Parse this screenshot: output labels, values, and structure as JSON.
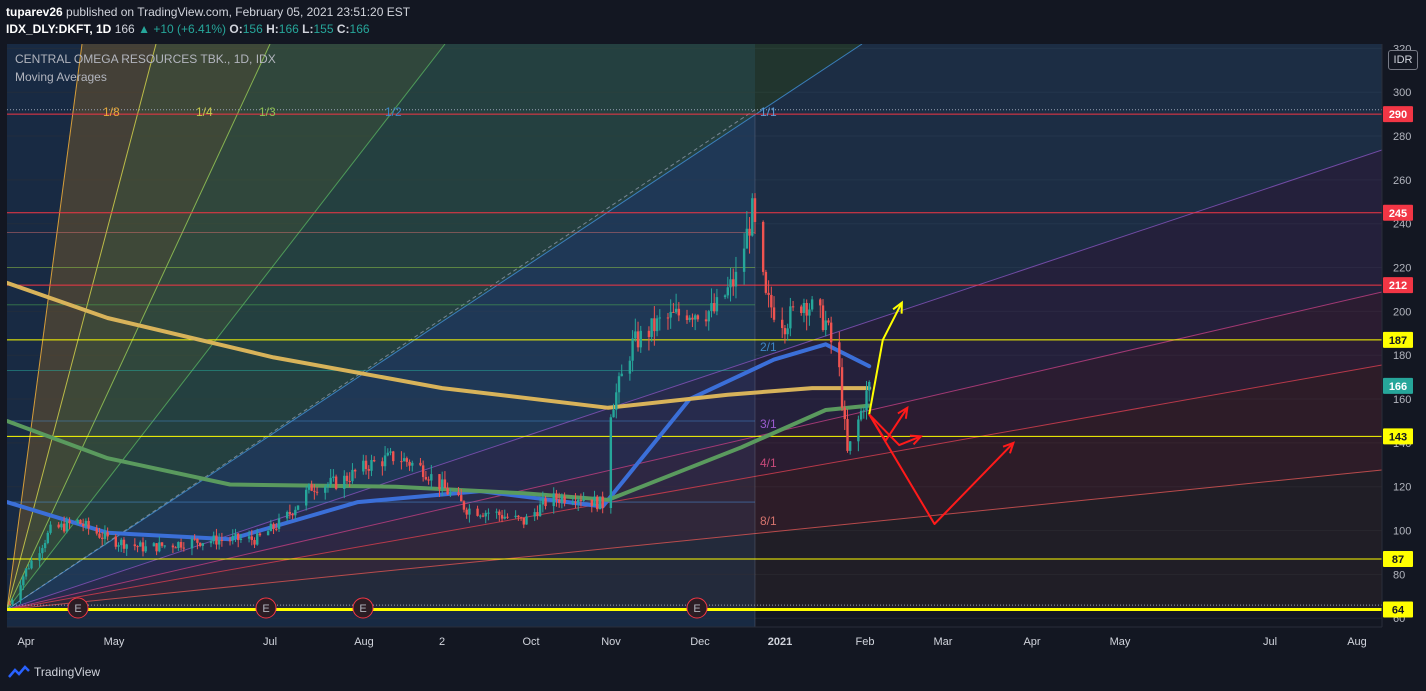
{
  "header": {
    "author": "tuparev26",
    "published_text": "published on TradingView.com, February 05, 2021 23:51:20 EST",
    "symbol": "IDX_DLY:DKFT, 1D",
    "last": "166",
    "change": "+10 (+6.41%)",
    "o_label": "O:",
    "o": "156",
    "h_label": "H:",
    "h": "166",
    "l_label": "L:",
    "l": "155",
    "c_label": "C:",
    "c": "166"
  },
  "legend": {
    "series_title": "CENTRAL OMEGA RESOURCES TBK., 1D, IDX",
    "indicator_title": "Moving Averages"
  },
  "currency": "IDR",
  "footer": {
    "brand": "TradingView"
  },
  "colors": {
    "background": "#131722",
    "up": "#26a69a",
    "down": "#ef5350",
    "ma_fast": "#3b6fd8",
    "ma_mid": "#5a9a5e",
    "ma_slow": "#d8b35a",
    "level_yellow": "#ffff00",
    "level_red": "#f23645",
    "arrow_yellow": "#ffff00",
    "arrow_red": "#ff1a1a"
  },
  "chart_data": {
    "type": "candlestick",
    "ylim": [
      56,
      322
    ],
    "y_ticks": [
      60,
      80,
      100,
      120,
      140,
      160,
      180,
      200,
      220,
      240,
      260,
      280,
      300,
      320
    ],
    "x_ticks": [
      "Apr",
      "May",
      "Jul",
      "Aug",
      "2",
      "Oct",
      "Nov",
      "Dec",
      "2021",
      "Feb",
      "Mar",
      "Apr",
      "May",
      "Jul",
      "Aug"
    ],
    "price_levels": [
      {
        "value": 290,
        "label": "290",
        "color": "#f23645"
      },
      {
        "value": 245,
        "label": "245",
        "color": "#f23645"
      },
      {
        "value": 212,
        "label": "212",
        "color": "#f23645"
      },
      {
        "value": 187,
        "label": "187",
        "color": "#ffff00"
      },
      {
        "value": 166,
        "label": "166",
        "color": "#26a69a"
      },
      {
        "value": 143,
        "label": "143",
        "color": "#ffff00"
      },
      {
        "value": 87,
        "label": "87",
        "color": "#ffff00"
      },
      {
        "value": 64,
        "label": "64",
        "color": "#ffff00"
      }
    ],
    "gann_fan_labels": [
      "1/8",
      "1/4",
      "1/3",
      "1/2",
      "1/1",
      "2/1",
      "3/1",
      "4/1",
      "8/1"
    ],
    "earnings_marker": "E",
    "earnings_count": 4,
    "price_path": [
      [
        "2020-03-25",
        64
      ],
      [
        "2020-04-01",
        82
      ],
      [
        "2020-04-10",
        100
      ],
      [
        "2020-04-20",
        104
      ],
      [
        "2020-05-01",
        96
      ],
      [
        "2020-05-15",
        92
      ],
      [
        "2020-06-01",
        95
      ],
      [
        "2020-06-15",
        96
      ],
      [
        "2020-06-25",
        96
      ],
      [
        "2020-07-05",
        105
      ],
      [
        "2020-07-15",
        120
      ],
      [
        "2020-07-25",
        122
      ],
      [
        "2020-08-05",
        130
      ],
      [
        "2020-08-15",
        134
      ],
      [
        "2020-08-25",
        128
      ],
      [
        "2020-09-01",
        120
      ],
      [
        "2020-09-10",
        110
      ],
      [
        "2020-09-20",
        108
      ],
      [
        "2020-10-01",
        104
      ],
      [
        "2020-10-10",
        114
      ],
      [
        "2020-10-20",
        116
      ],
      [
        "2020-10-30",
        112
      ],
      [
        "2020-11-02",
        155
      ],
      [
        "2020-11-10",
        185
      ],
      [
        "2020-11-20",
        195
      ],
      [
        "2020-11-30",
        200
      ],
      [
        "2020-12-10",
        200
      ],
      [
        "2020-12-18",
        215
      ],
      [
        "2020-12-24",
        245
      ],
      [
        "2020-12-29",
        205
      ],
      [
        "2021-01-05",
        195
      ],
      [
        "2021-01-12",
        205
      ],
      [
        "2021-01-20",
        195
      ],
      [
        "2021-01-25",
        172
      ],
      [
        "2021-01-28",
        135
      ],
      [
        "2021-02-01",
        150
      ],
      [
        "2021-02-05",
        166
      ]
    ],
    "moving_averages": [
      {
        "name": "MA fast",
        "color": "#3b6fd8",
        "points": [
          [
            "2020-03-25",
            113
          ],
          [
            "2020-05-01",
            99
          ],
          [
            "2020-06-15",
            96
          ],
          [
            "2020-08-01",
            113
          ],
          [
            "2020-09-15",
            118
          ],
          [
            "2020-10-30",
            111
          ],
          [
            "2020-12-01",
            160
          ],
          [
            "2021-01-01",
            178
          ],
          [
            "2021-01-20",
            185
          ],
          [
            "2021-02-05",
            175
          ]
        ]
      },
      {
        "name": "MA mid",
        "color": "#5a9a5e",
        "points": [
          [
            "2020-03-25",
            150
          ],
          [
            "2020-05-01",
            133
          ],
          [
            "2020-06-15",
            121
          ],
          [
            "2020-08-15",
            120
          ],
          [
            "2020-10-01",
            117
          ],
          [
            "2020-11-01",
            114
          ],
          [
            "2020-12-20",
            138
          ],
          [
            "2021-01-20",
            155
          ],
          [
            "2021-02-05",
            157
          ]
        ]
      },
      {
        "name": "MA slow",
        "color": "#d8b35a",
        "points": [
          [
            "2020-03-25",
            213
          ],
          [
            "2020-05-01",
            197
          ],
          [
            "2020-07-01",
            179
          ],
          [
            "2020-09-01",
            165
          ],
          [
            "2020-11-01",
            156
          ],
          [
            "2020-12-15",
            162
          ],
          [
            "2021-01-15",
            165
          ],
          [
            "2021-02-05",
            165
          ]
        ]
      }
    ],
    "projection_arrows": [
      {
        "color": "#ffff00",
        "points": [
          [
            "2021-02-05",
            153
          ],
          [
            "2021-02-10",
            187
          ],
          [
            "2021-02-17",
            204
          ]
        ]
      },
      {
        "color": "#ff1a1a",
        "points": [
          [
            "2021-02-05",
            153
          ],
          [
            "2021-02-11",
            141
          ],
          [
            "2021-02-19",
            156
          ]
        ]
      },
      {
        "color": "#ff1a1a",
        "points": [
          [
            "2021-02-05",
            153
          ],
          [
            "2021-02-16",
            139
          ],
          [
            "2021-02-24",
            143
          ]
        ]
      },
      {
        "color": "#ff1a1a",
        "points": [
          [
            "2021-02-05",
            153
          ],
          [
            "2021-03-01",
            103
          ],
          [
            "2021-03-30",
            140
          ]
        ]
      }
    ]
  }
}
